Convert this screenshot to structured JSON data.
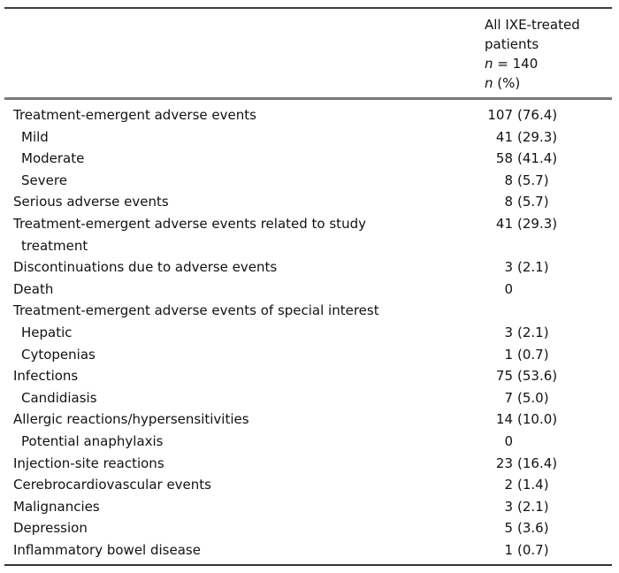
{
  "table": {
    "title_semantic": "Safety summary, all ixekizumab-treated patients",
    "header": {
      "line1": "All IXE-treated",
      "line2": "patients",
      "line3_italic": "n",
      "line3_rest": " = 140",
      "line4_italic": "n",
      "line4_rest": " (%)"
    },
    "rows": [
      {
        "label": "Treatment-emergent adverse events",
        "indent": false,
        "n": "107",
        "pct": "(76.4)"
      },
      {
        "label": "Mild",
        "indent": true,
        "n": "41",
        "pct": "(29.3)"
      },
      {
        "label": "Moderate",
        "indent": true,
        "n": "58",
        "pct": "(41.4)"
      },
      {
        "label": "Severe",
        "indent": true,
        "n": "8",
        "pct": "(5.7)"
      },
      {
        "label": "Serious adverse events",
        "indent": false,
        "n": "8",
        "pct": "(5.7)"
      },
      {
        "label": "Treatment-emergent adverse events related to study",
        "label2": "treatment",
        "indent": false,
        "n": "41",
        "pct": "(29.3)"
      },
      {
        "label": "Discontinuations due to adverse events",
        "indent": false,
        "n": "3",
        "pct": "(2.1)"
      },
      {
        "label": "Death",
        "indent": false,
        "n": "0",
        "pct": ""
      },
      {
        "label": "Treatment-emergent adverse events of special interest",
        "indent": false,
        "n": "",
        "pct": ""
      },
      {
        "label": "Hepatic",
        "indent": true,
        "n": "3",
        "pct": "(2.1)"
      },
      {
        "label": "Cytopenias",
        "indent": true,
        "n": "1",
        "pct": "(0.7)"
      },
      {
        "label": "Infections",
        "indent": false,
        "n": "75",
        "pct": "(53.6)"
      },
      {
        "label": "Candidiasis",
        "indent": true,
        "n": "7",
        "pct": "(5.0)"
      },
      {
        "label": "Allergic reactions/hypersensitivities",
        "indent": false,
        "n": "14",
        "pct": "(10.0)"
      },
      {
        "label": "Potential anaphylaxis",
        "indent": true,
        "n": "0",
        "pct": ""
      },
      {
        "label": "Injection-site reactions",
        "indent": false,
        "n": "23",
        "pct": "(16.4)"
      },
      {
        "label": "Cerebrocardiovascular events",
        "indent": false,
        "n": "2",
        "pct": "(1.4)"
      },
      {
        "label": "Malignancies",
        "indent": false,
        "n": "3",
        "pct": "(2.1)"
      },
      {
        "label": "Depression",
        "indent": false,
        "n": "5",
        "pct": "(3.6)"
      },
      {
        "label": "Inflammatory bowel disease",
        "indent": false,
        "n": "1",
        "pct": "(0.7)"
      }
    ]
  },
  "colors": {
    "text": "#121212",
    "rule_top": "#3d3d3d",
    "rule_header": "#787878",
    "rule_bottom": "#333333",
    "background": "#ffffff"
  }
}
